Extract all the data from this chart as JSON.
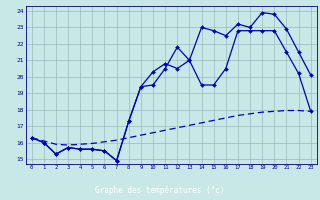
{
  "xlabel": "Graphe des températures (°c)",
  "bg_color": "#c8e8e8",
  "grid_color": "#99bbbb",
  "line_color": "#0000bb",
  "hours": [
    0,
    1,
    2,
    3,
    4,
    5,
    6,
    7,
    8,
    9,
    10,
    11,
    12,
    13,
    14,
    15,
    16,
    17,
    18,
    19,
    20,
    21,
    22,
    23
  ],
  "curve1": [
    16.3,
    16.0,
    15.3,
    15.7,
    15.6,
    15.6,
    15.5,
    14.9,
    17.3,
    19.4,
    20.3,
    20.8,
    20.5,
    21.0,
    23.0,
    22.8,
    22.5,
    23.2,
    23.0,
    23.9,
    23.8,
    22.9,
    21.5,
    20.1
  ],
  "curve2": [
    16.3,
    16.0,
    15.3,
    15.7,
    15.6,
    15.6,
    15.5,
    14.9,
    17.3,
    19.4,
    19.5,
    20.5,
    21.8,
    21.0,
    19.5,
    19.5,
    20.5,
    22.8,
    22.8,
    22.8,
    22.8,
    21.5,
    20.2,
    17.9
  ],
  "curve3_x": [
    0,
    1,
    2,
    3,
    4,
    5,
    6,
    7,
    8,
    9,
    10,
    11,
    12,
    13,
    14,
    15,
    16,
    17,
    18,
    19,
    20,
    21,
    22,
    23
  ],
  "curve3_y": [
    16.3,
    16.1,
    15.9,
    15.85,
    15.9,
    15.95,
    16.05,
    16.15,
    16.3,
    16.45,
    16.6,
    16.75,
    16.9,
    17.05,
    17.2,
    17.35,
    17.5,
    17.65,
    17.75,
    17.85,
    17.9,
    17.95,
    17.95,
    17.9
  ],
  "ylim_min": 14.7,
  "ylim_max": 24.3,
  "yticks": [
    15,
    16,
    17,
    18,
    19,
    20,
    21,
    22,
    23,
    24
  ],
  "xticks": [
    0,
    1,
    2,
    3,
    4,
    5,
    6,
    7,
    8,
    9,
    10,
    11,
    12,
    13,
    14,
    15,
    16,
    17,
    18,
    19,
    20,
    21,
    22,
    23
  ]
}
